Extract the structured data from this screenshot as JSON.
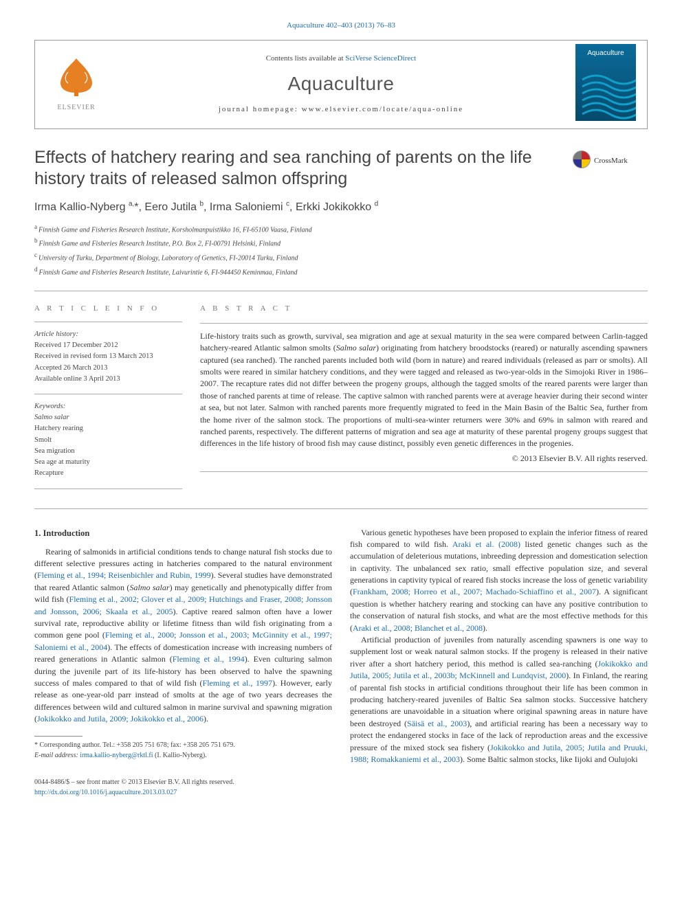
{
  "journal": {
    "citation": "Aquaculture 402–403 (2013) 76–83",
    "contents_prefix": "Contents lists available at ",
    "contents_link": "SciVerse ScienceDirect",
    "name": "Aquaculture",
    "homepage_label": "journal homepage: ",
    "homepage_url": "www.elsevier.com/locate/aqua-online"
  },
  "publisher_logo": {
    "name": "ELSEVIER",
    "tree_color": "#e67817",
    "text_color": "#8a8a8a"
  },
  "cover": {
    "title": "Aquaculture",
    "bg_top": "#0b6b9a",
    "bg_bottom": "#064a6c",
    "waves": "#0f8fb8"
  },
  "crossmark_label": "CrossMark",
  "article": {
    "title": "Effects of hatchery rearing and sea ranching of parents on the life history traits of released salmon offspring",
    "authors_html": "Irma Kallio-Nyberg <sup>a,</sup>*, Eero Jutila <sup>b</sup>, Irma Saloniemi <sup>c</sup>, Erkki Jokikokko <sup>d</sup>",
    "affiliations": [
      {
        "sup": "a",
        "text": "Finnish Game and Fisheries Research Institute, Korsholmanpuistikko 16, FI-65100 Vaasa, Finland"
      },
      {
        "sup": "b",
        "text": "Finnish Game and Fisheries Research Institute, P.O. Box 2, FI-00791 Helsinki, Finland"
      },
      {
        "sup": "c",
        "text": "University of Turku, Department of Biology, Laboratory of Genetics, FI-20014 Turku, Finland"
      },
      {
        "sup": "d",
        "text": "Finnish Game and Fisheries Research Institute, Laivurintie 6, FI-944450 Keminmaa, Finland"
      }
    ]
  },
  "info": {
    "heading": "A R T I C L E   I N F O",
    "history_label": "Article history:",
    "history": [
      "Received 17 December 2012",
      "Received in revised form 13 March 2013",
      "Accepted 26 March 2013",
      "Available online 3 April 2013"
    ],
    "keywords_label": "Keywords:",
    "keywords": [
      "Salmo salar",
      "Hatchery rearing",
      "Smolt",
      "Sea migration",
      "Sea age at maturity",
      "Recapture"
    ]
  },
  "abstract": {
    "heading": "A B S T R A C T",
    "text": "Life-history traits such as growth, survival, sea migration and age at sexual maturity in the sea were compared between Carlin-tagged hatchery-reared Atlantic salmon smolts (Salmo salar) originating from hatchery broodstocks (reared) or naturally ascending spawners captured (sea ranched). The ranched parents included both wild (born in nature) and reared individuals (released as parr or smolts). All smolts were reared in similar hatchery conditions, and they were tagged and released as two-year-olds in the Simojoki River in 1986–2007. The recapture rates did not differ between the progeny groups, although the tagged smolts of the reared parents were larger than those of ranched parents at time of release. The captive salmon with ranched parents were at average heavier during their second winter at sea, but not later. Salmon with ranched parents more frequently migrated to feed in the Main Basin of the Baltic Sea, further from the home river of the salmon stock. The proportions of multi-sea-winter returners were 30% and 69% in salmon with reared and ranched parents, respectively. The different patterns of migration and sea age at maturity of these parental progeny groups suggest that differences in the life history of brood fish may cause distinct, possibly even genetic differences in the progenies.",
    "copyright": "© 2013 Elsevier B.V. All rights reserved."
  },
  "sections": {
    "intro_heading": "1. Introduction",
    "left_paragraphs": [
      "Rearing of salmonids in artificial conditions tends to change natural fish stocks due to different selective pressures acting in hatcheries compared to the natural environment (<a href=\"#\">Fleming et al., 1994; Reisenbichler and Rubin, 1999</a>). Several studies have demonstrated that reared Atlantic salmon (<em>Salmo salar</em>) may genetically and phenotypically differ from wild fish (<a href=\"#\">Fleming et al., 2002; Glover et al., 2009; Hutchings and Fraser, 2008; Jonsson and Jonsson, 2006; Skaala et al., 2005</a>). Captive reared salmon often have a lower survival rate, reproductive ability or lifetime fitness than wild fish originating from a common gene pool (<a href=\"#\">Fleming et al., 2000; Jonsson et al., 2003; McGinnity et al., 1997; Saloniemi et al., 2004</a>). The effects of domestication increase with increasing numbers of reared generations in Atlantic salmon (<a href=\"#\">Fleming et al., 1994</a>). Even culturing salmon during the juvenile part of its life-history has been observed to halve the spawning success of males compared to that of wild fish (<a href=\"#\">Fleming et al., 1997</a>). However, early release as one-year-old parr instead of smolts at the age of two years decreases the differences between wild and cultured salmon in marine survival and spawning migration (<a href=\"#\">Jokikokko and Jutila, 2009; Jokikokko et al., 2006</a>)."
    ],
    "right_paragraphs": [
      "Various genetic hypotheses have been proposed to explain the inferior fitness of reared fish compared to wild fish. <a href=\"#\">Araki et al. (2008)</a> listed genetic changes such as the accumulation of deleterious mutations, inbreeding depression and domestication selection in captivity. The unbalanced sex ratio, small effective population size, and several generations in captivity typical of reared fish stocks increase the loss of genetic variability (<a href=\"#\">Frankham, 2008; Horreo et al., 2007; Machado-Schiaffino et al., 2007</a>). A significant question is whether hatchery rearing and stocking can have any positive contribution to the conservation of natural fish stocks, and what are the most effective methods for this (<a href=\"#\">Araki et al., 2008; Blanchet et al., 2008</a>).",
      "Artificial production of juveniles from naturally ascending spawners is one way to supplement lost or weak natural salmon stocks. If the progeny is released in their native river after a short hatchery period, this method is called sea-ranching (<a href=\"#\">Jokikokko and Jutila, 2005; Jutila et al., 2003b; McKinnell and Lundqvist, 2000</a>). In Finland, the rearing of parental fish stocks in artificial conditions throughout their life has been common in producing hatchery-reared juveniles of Baltic Sea salmon stocks. Successive hatchery generations are unavoidable in a situation where original spawning areas in nature have been destroyed (<a href=\"#\">Säisä et al., 2003</a>), and artificial rearing has been a necessary way to protect the endangered stocks in face of the lack of reproduction areas and the excessive pressure of the mixed stock sea fishery (<a href=\"#\">Jokikokko and Jutila, 2005; Jutila and Pruuki, 1988; Romakkaniemi et al., 2003</a>). Some Baltic salmon stocks, like Iijoki and Oulujoki"
    ]
  },
  "footnote": {
    "corr": "* Corresponding author. Tel.: +358 205 751 678; fax: +358 205 751 679.",
    "email_label": "E-mail address: ",
    "email": "irma.kallio-nyberg@rktl.fi",
    "email_who": " (I. Kallio-Nyberg)."
  },
  "bottom": {
    "left1": "0044-8486/$ – see front matter © 2013 Elsevier B.V. All rights reserved.",
    "left2": "http://dx.doi.org/10.1016/j.aquaculture.2013.03.027"
  },
  "colors": {
    "link": "#1a6bb3",
    "text": "#333333",
    "muted": "#777777",
    "rule": "#aaaaaa"
  }
}
